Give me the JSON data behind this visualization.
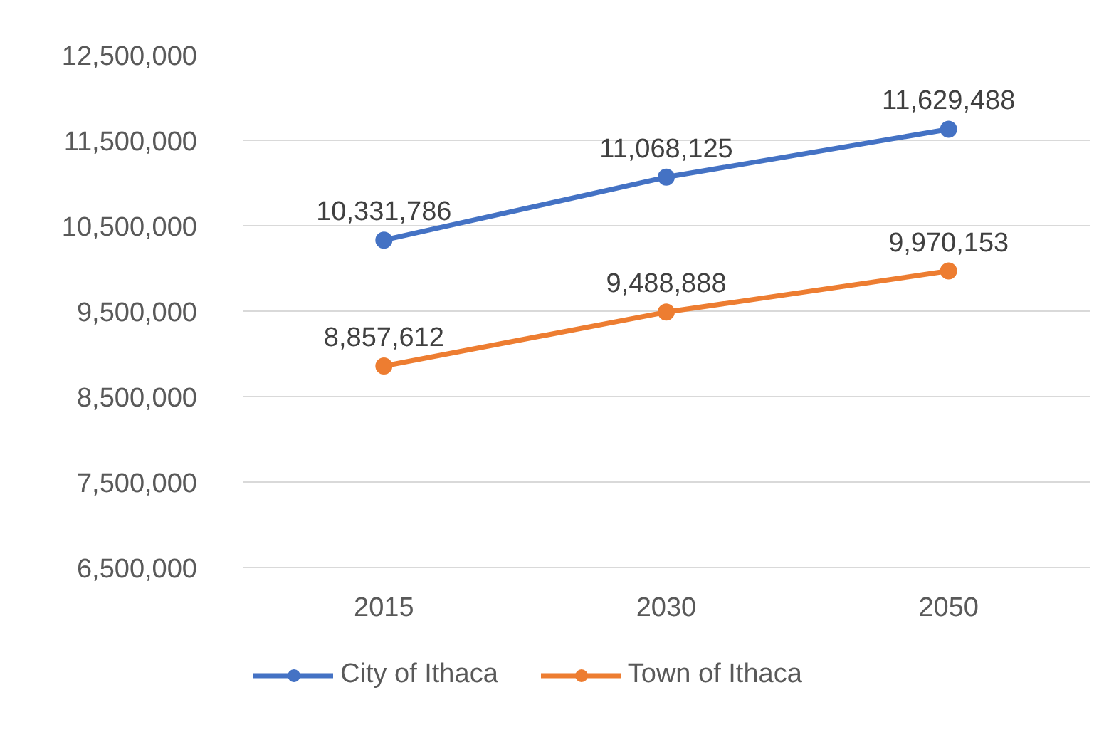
{
  "chart_data": {
    "type": "line",
    "categories": [
      "2015",
      "2030",
      "2050"
    ],
    "series": [
      {
        "name": "City of Ithaca",
        "color": "#4472c4",
        "values": [
          10331786,
          11068125,
          11629488
        ],
        "value_labels": [
          "10,331,786",
          "11,068,125",
          "11,629,488"
        ]
      },
      {
        "name": "Town of Ithaca",
        "color": "#ed7d31",
        "values": [
          8857612,
          9488888,
          9970153
        ],
        "value_labels": [
          "8,857,612",
          "9,488,888",
          "9,970,153"
        ]
      }
    ],
    "ylim": [
      6500000,
      12500000
    ],
    "yticks": [
      {
        "value": 6500000,
        "label": "6,500,000"
      },
      {
        "value": 7500000,
        "label": "7,500,000"
      },
      {
        "value": 8500000,
        "label": "8,500,000"
      },
      {
        "value": 9500000,
        "label": "9,500,000"
      },
      {
        "value": 10500000,
        "label": "10,500,000"
      },
      {
        "value": 11500000,
        "label": "11,500,000"
      },
      {
        "value": 12500000,
        "label": "12,500,000"
      }
    ],
    "grid": "y",
    "legend": "bottom",
    "marker": "circle",
    "line_style": "solid"
  }
}
